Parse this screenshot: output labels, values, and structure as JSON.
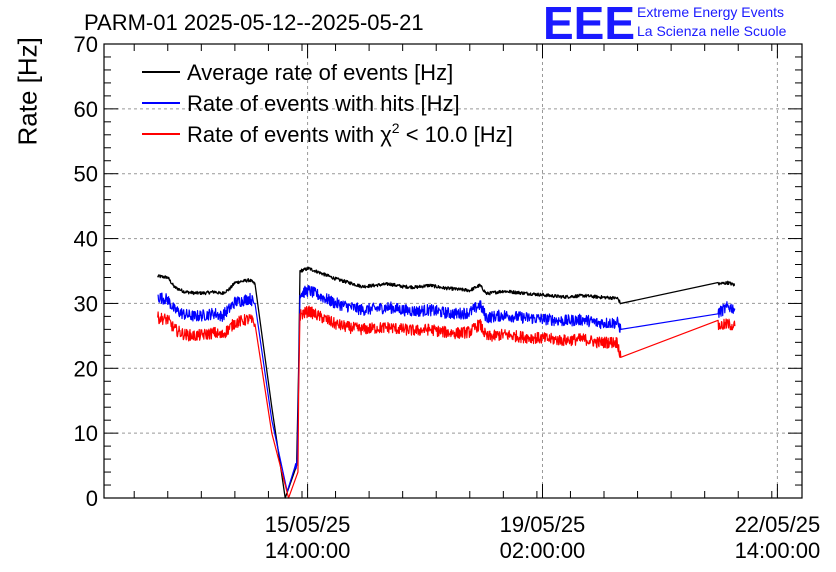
{
  "header": {
    "title": "PARM-01 2025-05-12--2025-05-21",
    "logo_text": "EEE",
    "logo_line1": "Extreme Energy Events",
    "logo_line2": "La Scienza nelle Scuole"
  },
  "colors": {
    "logo": "#1a1aff",
    "series_average": "#000000",
    "series_hits": "#0000ff",
    "series_chi2": "#ff0000",
    "grid": "#999999"
  },
  "chart_data": {
    "type": "line",
    "title": "PARM-01 2025-05-12--2025-05-21",
    "xlabel": "",
    "ylabel": "Rate [Hz]",
    "ylim": [
      0,
      70
    ],
    "xlim_days": [
      12.55,
      22.95
    ],
    "y_ticks": [
      0,
      10,
      20,
      30,
      40,
      50,
      60,
      70
    ],
    "x_ticks": [
      {
        "day": 15.5833,
        "line1": "15/05/25",
        "line2": "14:00:00"
      },
      {
        "day": 19.0833,
        "line1": "19/05/25",
        "line2": "02:00:00"
      },
      {
        "day": 22.5833,
        "line1": "22/05/25",
        "line2": "14:00:00"
      }
    ],
    "grid": true,
    "legend_position": "top-left",
    "series": [
      {
        "name": "Average rate of events [Hz]",
        "color": "#000000",
        "points": [
          [
            13.35,
            34.2
          ],
          [
            13.5,
            34.0
          ],
          [
            13.6,
            32.5
          ],
          [
            13.75,
            31.8
          ],
          [
            13.9,
            31.6
          ],
          [
            14.05,
            31.6
          ],
          [
            14.2,
            31.8
          ],
          [
            14.3,
            31.5
          ],
          [
            14.42,
            32.2
          ],
          [
            14.5,
            33.2
          ],
          [
            14.6,
            33.4
          ],
          [
            14.72,
            33.6
          ],
          [
            14.8,
            33.0
          ],
          [
            15.05,
            14.0
          ],
          [
            15.25,
            0.0
          ],
          [
            15.42,
            5.0
          ],
          [
            15.45,
            20.0
          ],
          [
            15.47,
            35.0
          ],
          [
            15.6,
            35.4
          ],
          [
            15.8,
            34.6
          ],
          [
            16.0,
            33.8
          ],
          [
            16.2,
            33.2
          ],
          [
            16.4,
            32.6
          ],
          [
            16.6,
            32.8
          ],
          [
            16.8,
            33.0
          ],
          [
            17.0,
            32.6
          ],
          [
            17.2,
            32.5
          ],
          [
            17.4,
            32.8
          ],
          [
            17.6,
            32.4
          ],
          [
            17.8,
            32.2
          ],
          [
            18.0,
            32.0
          ],
          [
            18.15,
            32.8
          ],
          [
            18.25,
            31.5
          ],
          [
            18.5,
            31.9
          ],
          [
            18.8,
            31.6
          ],
          [
            19.1,
            31.3
          ],
          [
            19.4,
            31.0
          ],
          [
            19.7,
            31.2
          ],
          [
            19.9,
            31.0
          ],
          [
            20.2,
            30.8
          ],
          [
            20.25,
            30.0
          ],
          [
            21.7,
            33.0
          ],
          [
            21.85,
            33.2
          ],
          [
            21.95,
            32.8
          ]
        ]
      },
      {
        "name": "Rate of events with hits [Hz]",
        "color": "#0000ff",
        "points": [
          [
            13.35,
            31.0
          ],
          [
            13.5,
            30.6
          ],
          [
            13.6,
            29.0
          ],
          [
            13.75,
            28.3
          ],
          [
            13.9,
            28.0
          ],
          [
            14.05,
            28.2
          ],
          [
            14.2,
            28.5
          ],
          [
            14.3,
            28.0
          ],
          [
            14.42,
            29.2
          ],
          [
            14.5,
            30.2
          ],
          [
            14.6,
            30.4
          ],
          [
            14.72,
            30.8
          ],
          [
            14.8,
            30.0
          ],
          [
            15.05,
            12.0
          ],
          [
            15.28,
            1.0
          ],
          [
            15.43,
            6.0
          ],
          [
            15.45,
            18.0
          ],
          [
            15.47,
            31.5
          ],
          [
            15.6,
            32.0
          ],
          [
            15.8,
            31.0
          ],
          [
            16.0,
            30.0
          ],
          [
            16.2,
            29.5
          ],
          [
            16.4,
            29.0
          ],
          [
            16.6,
            29.2
          ],
          [
            16.8,
            29.4
          ],
          [
            17.0,
            29.0
          ],
          [
            17.2,
            28.8
          ],
          [
            17.4,
            29.0
          ],
          [
            17.6,
            28.6
          ],
          [
            17.8,
            28.4
          ],
          [
            18.0,
            28.6
          ],
          [
            18.15,
            29.8
          ],
          [
            18.25,
            27.8
          ],
          [
            18.5,
            28.2
          ],
          [
            18.8,
            27.8
          ],
          [
            19.1,
            27.6
          ],
          [
            19.4,
            27.3
          ],
          [
            19.7,
            27.5
          ],
          [
            19.9,
            27.0
          ],
          [
            20.2,
            27.0
          ],
          [
            20.25,
            26.0
          ],
          [
            21.7,
            28.5
          ],
          [
            21.85,
            29.5
          ],
          [
            21.95,
            29.2
          ]
        ]
      },
      {
        "name": "Rate of events with χ² < 10.0 [Hz]",
        "legend_prefix": "Rate of events with ",
        "legend_symbol": "χ",
        "legend_superscript": "2",
        "legend_suffix": " < 10.0 [Hz]",
        "color": "#ff0000",
        "points": [
          [
            13.35,
            27.8
          ],
          [
            13.5,
            27.5
          ],
          [
            13.6,
            26.0
          ],
          [
            13.75,
            25.2
          ],
          [
            13.9,
            25.0
          ],
          [
            14.05,
            25.2
          ],
          [
            14.2,
            25.5
          ],
          [
            14.3,
            25.0
          ],
          [
            14.42,
            26.2
          ],
          [
            14.5,
            27.0
          ],
          [
            14.6,
            27.3
          ],
          [
            14.72,
            27.6
          ],
          [
            14.8,
            26.8
          ],
          [
            15.05,
            10.0
          ],
          [
            15.3,
            0.0
          ],
          [
            15.44,
            4.0
          ],
          [
            15.45,
            16.0
          ],
          [
            15.47,
            28.2
          ],
          [
            15.6,
            28.8
          ],
          [
            15.8,
            27.8
          ],
          [
            16.0,
            26.8
          ],
          [
            16.2,
            26.3
          ],
          [
            16.4,
            26.0
          ],
          [
            16.6,
            26.2
          ],
          [
            16.8,
            26.3
          ],
          [
            17.0,
            26.0
          ],
          [
            17.2,
            25.8
          ],
          [
            17.4,
            26.0
          ],
          [
            17.6,
            25.6
          ],
          [
            17.8,
            25.4
          ],
          [
            18.0,
            25.6
          ],
          [
            18.15,
            26.8
          ],
          [
            18.25,
            24.8
          ],
          [
            18.5,
            25.2
          ],
          [
            18.8,
            24.8
          ],
          [
            19.1,
            24.6
          ],
          [
            19.4,
            24.3
          ],
          [
            19.7,
            24.5
          ],
          [
            19.9,
            24.0
          ],
          [
            20.2,
            24.0
          ],
          [
            20.25,
            21.7
          ],
          [
            21.7,
            26.5
          ],
          [
            21.85,
            26.8
          ],
          [
            21.95,
            26.5
          ]
        ]
      }
    ]
  }
}
